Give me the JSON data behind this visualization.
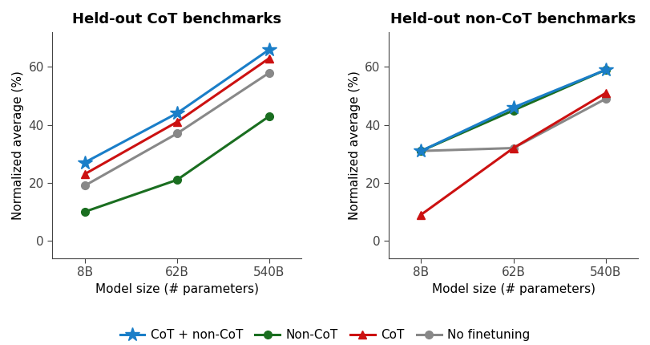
{
  "x_labels": [
    "8B",
    "62B",
    "540B"
  ],
  "x_positions": [
    0,
    1,
    2
  ],
  "left_title": "Held-out CoT benchmarks",
  "right_title": "Held-out non-CoT benchmarks",
  "left": {
    "cot_noncot": [
      27,
      44,
      66
    ],
    "noncot": [
      10,
      21,
      43
    ],
    "cot": [
      23,
      41,
      63
    ],
    "no_ft": [
      19,
      37,
      58
    ]
  },
  "right": {
    "cot_noncot": [
      31,
      46,
      59
    ],
    "noncot": [
      31,
      45,
      59
    ],
    "cot": [
      9,
      32,
      51
    ],
    "no_ft": [
      31,
      32,
      49
    ]
  },
  "colors": {
    "cot_noncot": "#1a7ec8",
    "noncot": "#1a6e20",
    "cot": "#cc1111",
    "no_ft": "#888888"
  },
  "ylabel": "Normalized average (%)",
  "xlabel": "Model size (# parameters)",
  "ylim": [
    -6,
    72
  ],
  "yticks": [
    0,
    20,
    40,
    60
  ],
  "legend": [
    {
      "label": "CoT + non-CoT",
      "color": "#1a7ec8",
      "marker": "*"
    },
    {
      "label": "Non-CoT",
      "color": "#1a6e20",
      "marker": "o"
    },
    {
      "label": "CoT",
      "color": "#cc1111",
      "marker": "^"
    },
    {
      "label": "No finetuning",
      "color": "#888888",
      "marker": "o"
    }
  ],
  "bg_color": "#ffffff",
  "title_fontsize": 13,
  "label_fontsize": 11,
  "tick_fontsize": 11,
  "legend_fontsize": 11,
  "linewidth": 2.2,
  "markersize_star": 13,
  "markersize_other": 7
}
